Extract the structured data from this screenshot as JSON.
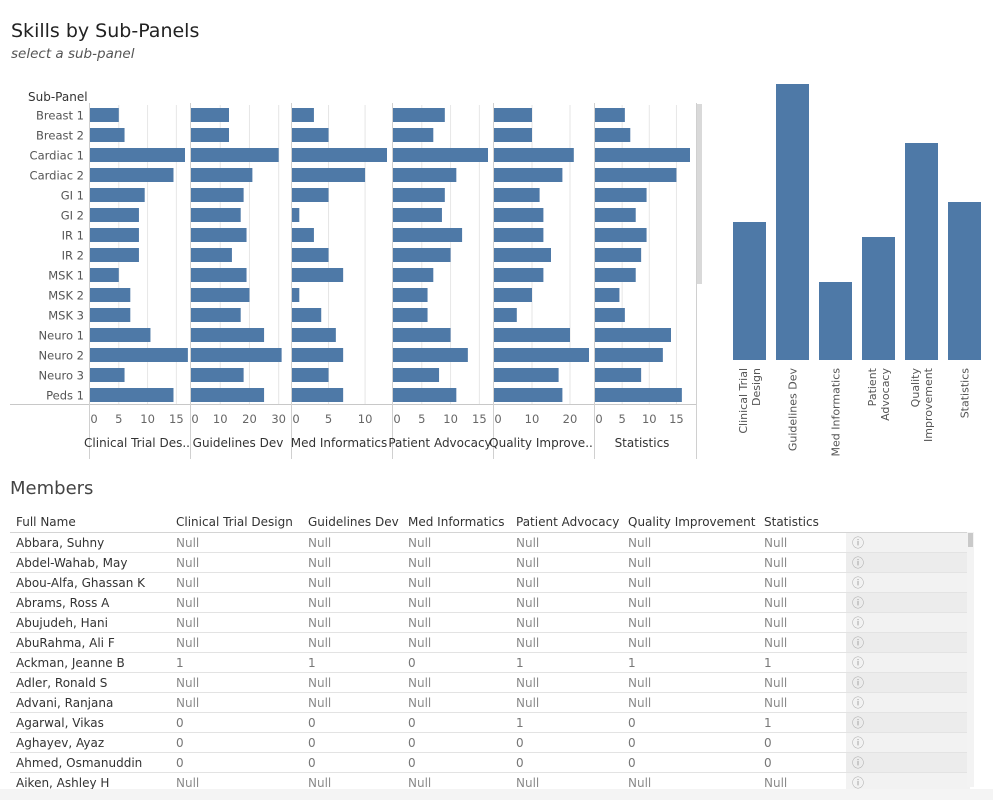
{
  "header": {
    "title": "Skills by Sub-Panels",
    "subtitle": "select a sub-panel"
  },
  "chart_data": [
    {
      "type": "bar",
      "orientation": "horizontal",
      "row_header": "Sub-Panel",
      "categories": [
        "Breast 1",
        "Breast 2",
        "Cardiac 1",
        "Cardiac 2",
        "GI 1",
        "GI 2",
        "IR 1",
        "IR 2",
        "MSK 1",
        "MSK 2",
        "MSK 3",
        "Neuro 1",
        "Neuro 2",
        "Neuro 3",
        "Peds 1"
      ],
      "panels": [
        {
          "name": "Clinical Trial Des..",
          "ticks": [
            0,
            5,
            10,
            15
          ],
          "max": 16.5,
          "values": [
            5,
            6,
            16.5,
            14.5,
            9.5,
            8.5,
            8.5,
            8.5,
            5,
            7,
            7,
            10.5,
            17,
            6,
            14.5
          ]
        },
        {
          "name": "Guidelines Dev",
          "ticks": [
            0,
            10,
            20,
            30
          ],
          "max": 32.5,
          "values": [
            13,
            13,
            30,
            21,
            18,
            17,
            19,
            14,
            19,
            20,
            17,
            25,
            31,
            18,
            25
          ]
        },
        {
          "name": "Med Informatics",
          "ticks": [
            0,
            5,
            10
          ],
          "max": 13,
          "values": [
            3,
            5,
            13,
            10,
            5,
            1,
            3,
            5,
            7,
            1,
            4,
            6,
            7,
            5,
            7
          ]
        },
        {
          "name": "Patient Advocacy",
          "ticks": [
            0,
            5,
            10,
            15
          ],
          "max": 16.5,
          "values": [
            9,
            7,
            16.5,
            11,
            9,
            8.5,
            12,
            10,
            7,
            6,
            6,
            10,
            13,
            8,
            11
          ]
        },
        {
          "name": "Quality Improve..",
          "ticks": [
            0,
            10,
            20
          ],
          "max": 25,
          "values": [
            10,
            10,
            21,
            18,
            12,
            13,
            13,
            15,
            13,
            10,
            6,
            20,
            25,
            17,
            18
          ]
        },
        {
          "name": "Statistics",
          "ticks": [
            0,
            5,
            10,
            15
          ],
          "max": 17.5,
          "values": [
            5.5,
            6.5,
            17.5,
            15,
            9.5,
            7.5,
            9.5,
            8.5,
            7.5,
            4.5,
            5.5,
            14,
            12.5,
            8.5,
            16
          ]
        }
      ]
    },
    {
      "type": "bar",
      "orientation": "vertical",
      "categories": [
        "Clinical Trial Design",
        "Guidelines Dev",
        "Med Informatics",
        "Patient Advocacy",
        "Quality Improvement",
        "Statistics"
      ],
      "category_lines": [
        [
          "Clinical Trial",
          "Design"
        ],
        [
          "Guidelines Dev"
        ],
        [
          "Med Informatics"
        ],
        [
          "Patient",
          "Advocacy"
        ],
        [
          "Quality",
          "Improvement"
        ],
        [
          "Statistics"
        ]
      ],
      "values": [
        138,
        276,
        78,
        123,
        217,
        158
      ]
    }
  ],
  "members": {
    "title": "Members",
    "columns": [
      "Full Name",
      "Clinical Trial Design",
      "Guidelines Dev",
      "Med Informatics",
      "Patient Advocacy",
      "Quality Improvement",
      "Statistics"
    ],
    "info_icon": "ⓘ",
    "rows": [
      [
        "Abbara, Suhny",
        "Null",
        "Null",
        "Null",
        "Null",
        "Null",
        "Null"
      ],
      [
        "Abdel-Wahab, May",
        "Null",
        "Null",
        "Null",
        "Null",
        "Null",
        "Null"
      ],
      [
        "Abou-Alfa, Ghassan K",
        "Null",
        "Null",
        "Null",
        "Null",
        "Null",
        "Null"
      ],
      [
        "Abrams, Ross A",
        "Null",
        "Null",
        "Null",
        "Null",
        "Null",
        "Null"
      ],
      [
        "Abujudeh, Hani",
        "Null",
        "Null",
        "Null",
        "Null",
        "Null",
        "Null"
      ],
      [
        "AbuRahma, Ali F",
        "Null",
        "Null",
        "Null",
        "Null",
        "Null",
        "Null"
      ],
      [
        "Ackman, Jeanne B",
        "1",
        "1",
        "0",
        "1",
        "1",
        "1"
      ],
      [
        "Adler, Ronald S",
        "Null",
        "Null",
        "Null",
        "Null",
        "Null",
        "Null"
      ],
      [
        "Advani, Ranjana",
        "Null",
        "Null",
        "Null",
        "Null",
        "Null",
        "Null"
      ],
      [
        "Agarwal, Vikas",
        "0",
        "0",
        "0",
        "1",
        "0",
        "1"
      ],
      [
        "Aghayev, Ayaz",
        "0",
        "0",
        "0",
        "0",
        "0",
        "0"
      ],
      [
        "Ahmed, Osmanuddin",
        "0",
        "0",
        "0",
        "0",
        "0",
        "0"
      ],
      [
        "Aiken, Ashley H",
        "Null",
        "Null",
        "Null",
        "Null",
        "Null",
        "Null"
      ]
    ]
  },
  "colors": {
    "bar": "#4e79a7",
    "gridline": "#e6e6e6",
    "divider": "#d0d0d0"
  }
}
